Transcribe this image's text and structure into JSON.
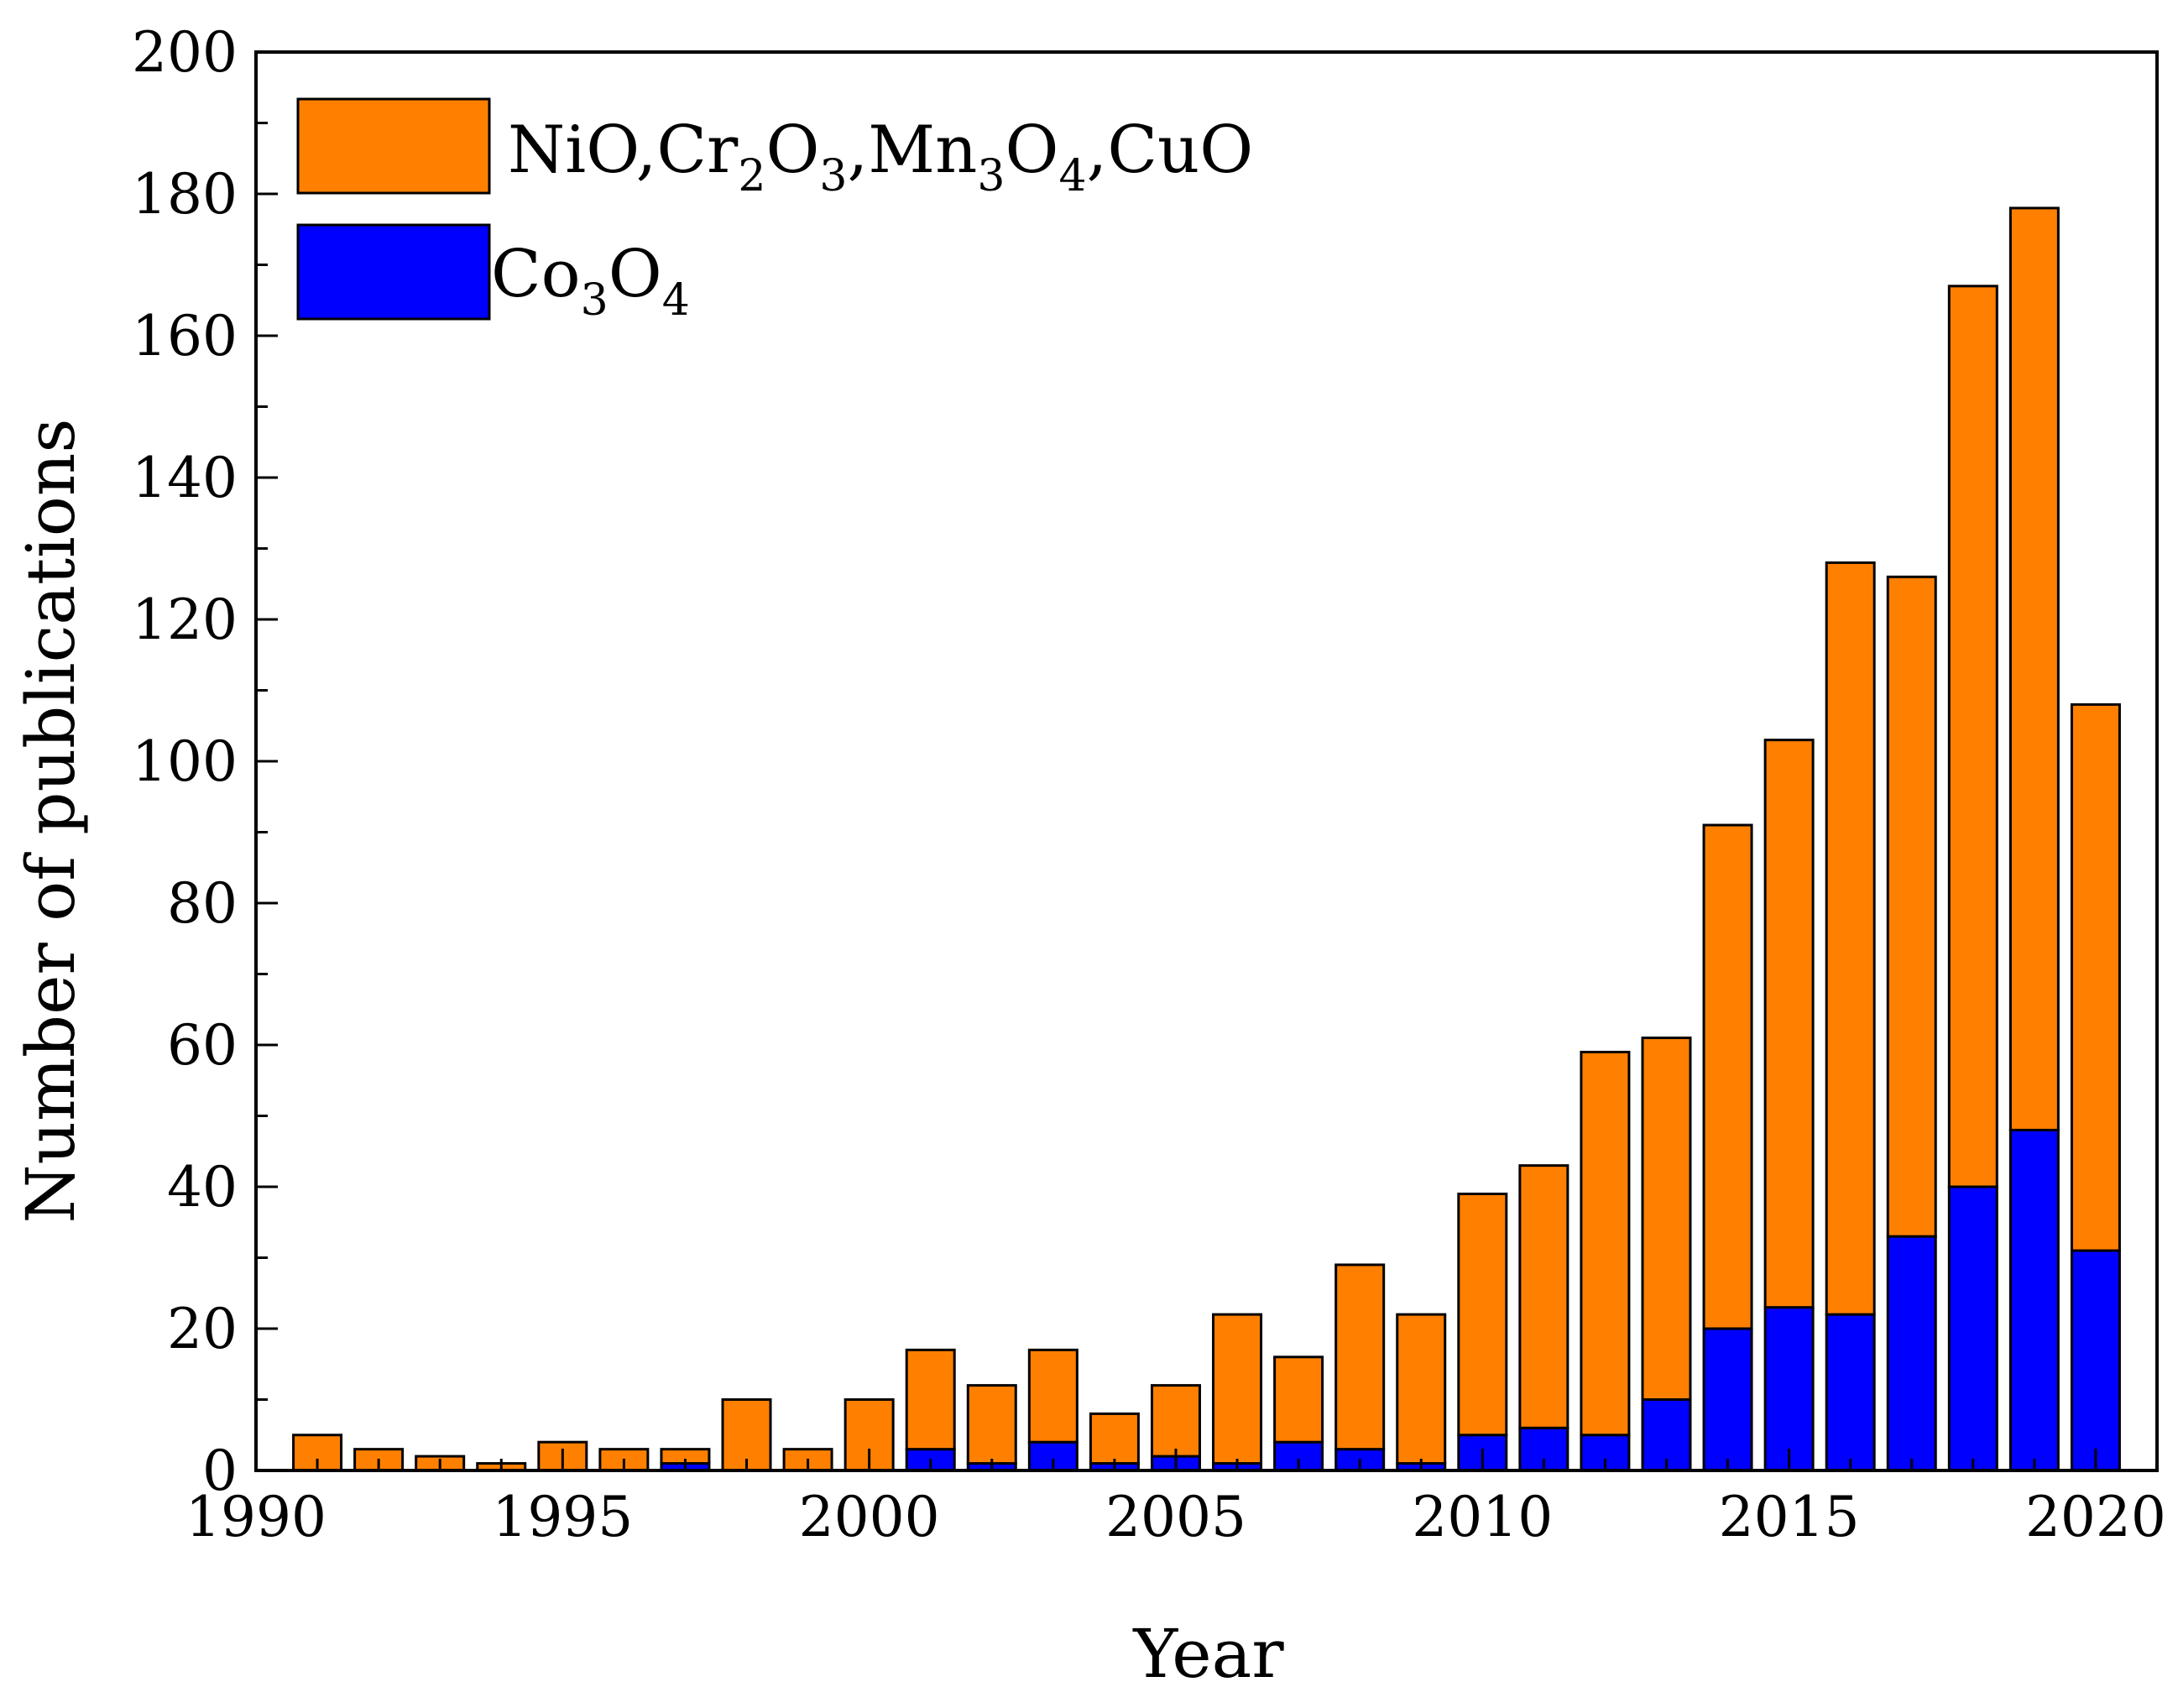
{
  "chart_data": {
    "type": "bar",
    "stacked": true,
    "title": "",
    "xlabel": "Year",
    "ylabel": "Number of publications",
    "xlim": [
      1990,
      2021
    ],
    "ylim": [
      0,
      200
    ],
    "x_ticks": [
      1990,
      1995,
      2000,
      2005,
      2010,
      2015,
      2020
    ],
    "y_ticks": [
      0,
      20,
      40,
      60,
      80,
      100,
      120,
      140,
      160,
      180,
      200
    ],
    "legend_position": "top-left",
    "categories": [
      1991,
      1992,
      1993,
      1994,
      1995,
      1996,
      1997,
      1998,
      1999,
      2000,
      2001,
      2002,
      2003,
      2004,
      2005,
      2006,
      2007,
      2008,
      2009,
      2010,
      2011,
      2012,
      2013,
      2014,
      2015,
      2016,
      2017,
      2018,
      2019,
      2020
    ],
    "totals": [
      5,
      3,
      2,
      1,
      4,
      3,
      3,
      10,
      3,
      10,
      17,
      12,
      17,
      8,
      12,
      22,
      16,
      29,
      22,
      39,
      43,
      59,
      61,
      91,
      103,
      128,
      126,
      167,
      178,
      108
    ],
    "series": [
      {
        "name": "Co3O4",
        "legend_parts": [
          [
            "Co",
            "normal"
          ],
          [
            "3",
            "sub"
          ],
          [
            "O",
            "normal"
          ],
          [
            "4",
            "sub"
          ]
        ],
        "color": "#0000ff",
        "values": [
          0,
          0,
          0,
          0,
          0,
          0,
          1,
          0,
          0,
          0,
          3,
          1,
          4,
          1,
          2,
          1,
          4,
          3,
          1,
          5,
          6,
          5,
          10,
          20,
          23,
          22,
          33,
          40,
          48,
          31
        ]
      },
      {
        "name": "NiO,Cr2O3,Mn3O4,CuO",
        "legend_parts": [
          [
            "NiO,Cr",
            "normal"
          ],
          [
            "2",
            "sub"
          ],
          [
            "O",
            "normal"
          ],
          [
            "3",
            "sub"
          ],
          [
            ",Mn",
            "normal"
          ],
          [
            "3",
            "sub"
          ],
          [
            "O",
            "normal"
          ],
          [
            "4",
            "sub"
          ],
          [
            ",CuO",
            "normal"
          ]
        ],
        "color": "#ff8000",
        "values": [
          5,
          3,
          2,
          1,
          4,
          3,
          2,
          10,
          3,
          10,
          14,
          11,
          13,
          7,
          10,
          21,
          12,
          26,
          21,
          34,
          37,
          54,
          51,
          71,
          80,
          106,
          93,
          127,
          130,
          77
        ]
      }
    ]
  }
}
